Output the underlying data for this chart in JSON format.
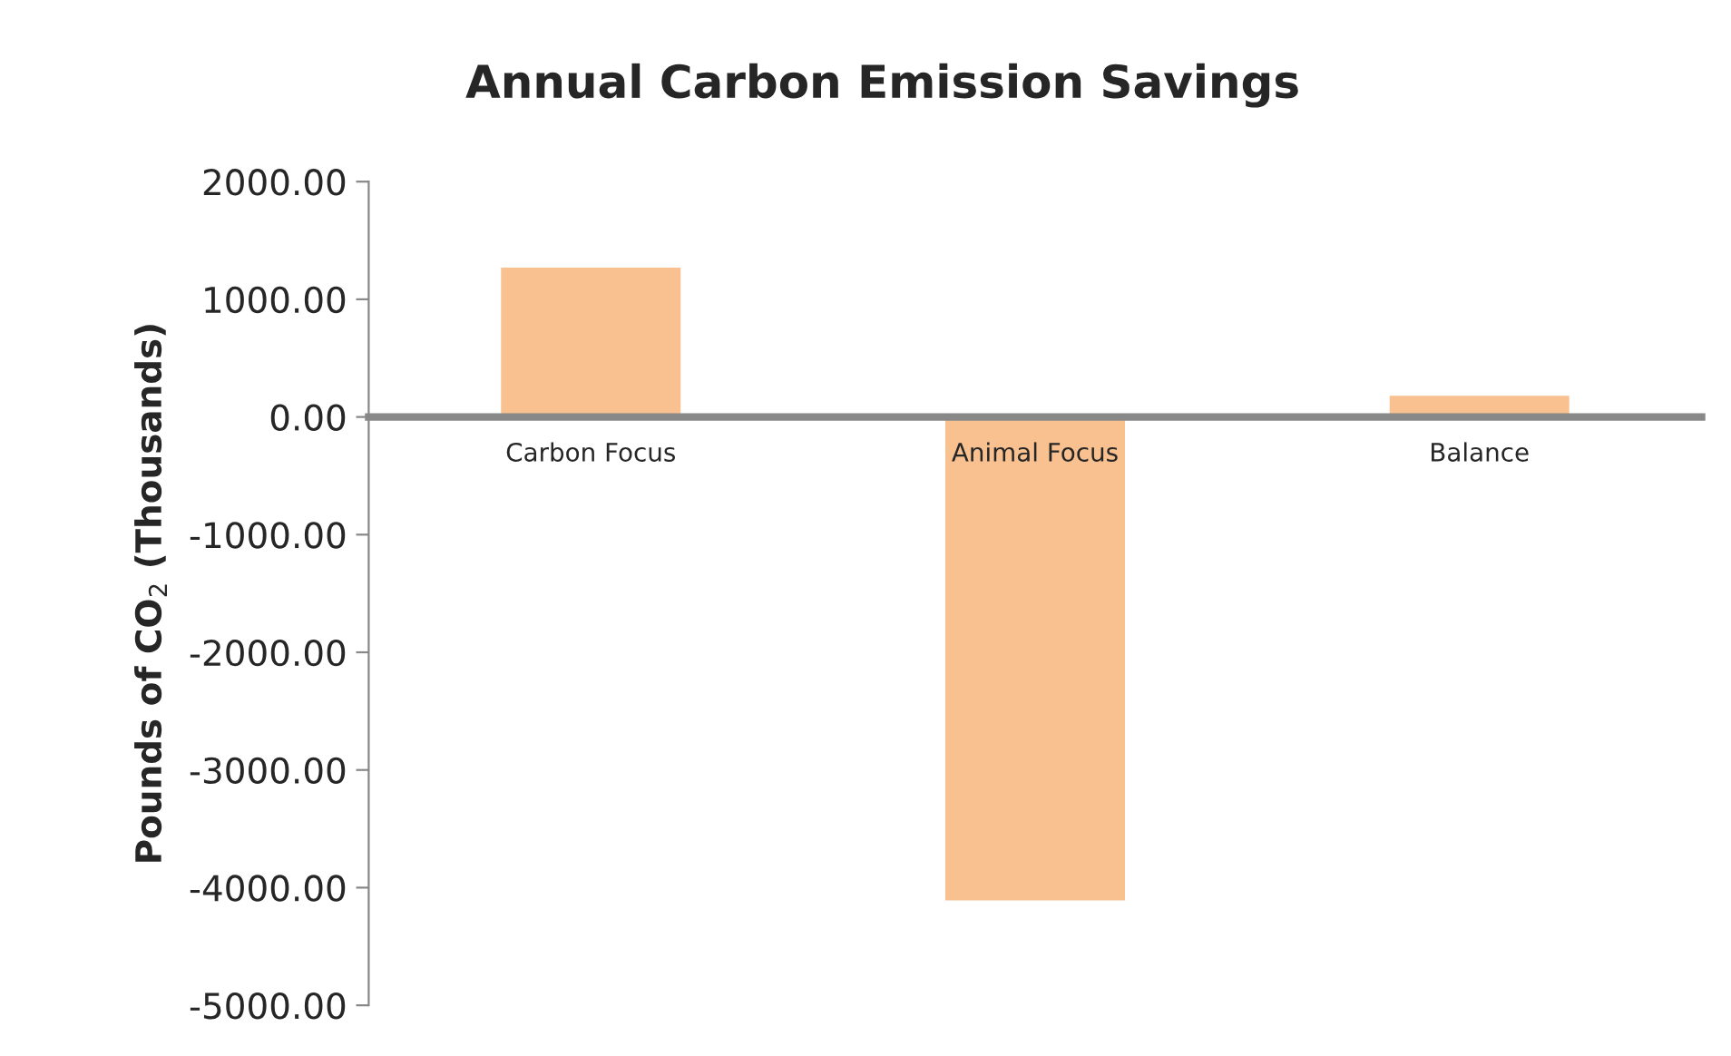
{
  "chart_data": {
    "type": "bar",
    "title": "Annual Carbon Emission Savings",
    "ylabel": "Pounds of CO$_{2}$ (Thousands)",
    "categories": [
      "Carbon Focus",
      "Animal Focus",
      "Balance"
    ],
    "values": [
      1280,
      -4120,
      190
    ],
    "color": "#f9c190",
    "ylim": [
      -5000,
      2000
    ],
    "yticks": [
      {
        "value": -5000,
        "label": "-5000.00"
      },
      {
        "value": -4000,
        "label": "-4000.00"
      },
      {
        "value": -3000,
        "label": "-3000.00"
      },
      {
        "value": -2000,
        "label": "-2000.00"
      },
      {
        "value": -1000,
        "label": "-1000.00"
      },
      {
        "value": 0,
        "label": "0.00"
      },
      {
        "value": 1000,
        "label": "1000.00"
      },
      {
        "value": 2000,
        "label": "2000.00"
      }
    ],
    "grid": false,
    "legend": false
  }
}
